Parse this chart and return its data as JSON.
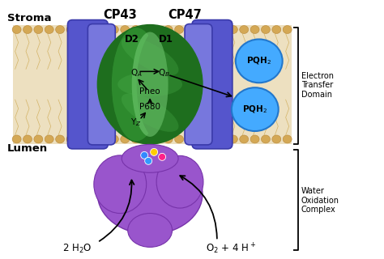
{
  "stroma_label": "Stroma",
  "lumen_label": "Lumen",
  "cp43_label": "CP43",
  "cp47_label": "CP47",
  "d2_label": "D2",
  "d1_label": "D1",
  "qa_label": "Q$_A$",
  "qb_label": "Q$_B$",
  "pheo_label": "Pheo",
  "p680_label": "P680",
  "yz_label": "Y$_Z$",
  "pqh2_label": "PQH$_2$",
  "water_label": "2 H$_2$O",
  "o2_label": "O$_2$ + 4 H$^+$",
  "electron_transfer_label": "Electron\nTransfer\nDomain",
  "water_oxidation_label": "Water\nOxidation\nComplex",
  "bg_color": "#ffffff",
  "membrane_bg": "#ede0c0",
  "lipid_color": "#d4a855",
  "lipid_edge": "#b8883a",
  "blue_dark": "#3a3aaa",
  "blue_mid": "#5555cc",
  "blue_light": "#7777dd",
  "green_dark": "#1e6e1e",
  "green_mid": "#2d8a2d",
  "green_light": "#55bb55",
  "green_highlight": "#99ee99",
  "purple_dark": "#7733aa",
  "purple_mid": "#9955cc",
  "purple_light": "#bb88ee",
  "pqh2_color": "#44aaff",
  "pqh2_edge": "#2277cc",
  "text_color": "#000000"
}
